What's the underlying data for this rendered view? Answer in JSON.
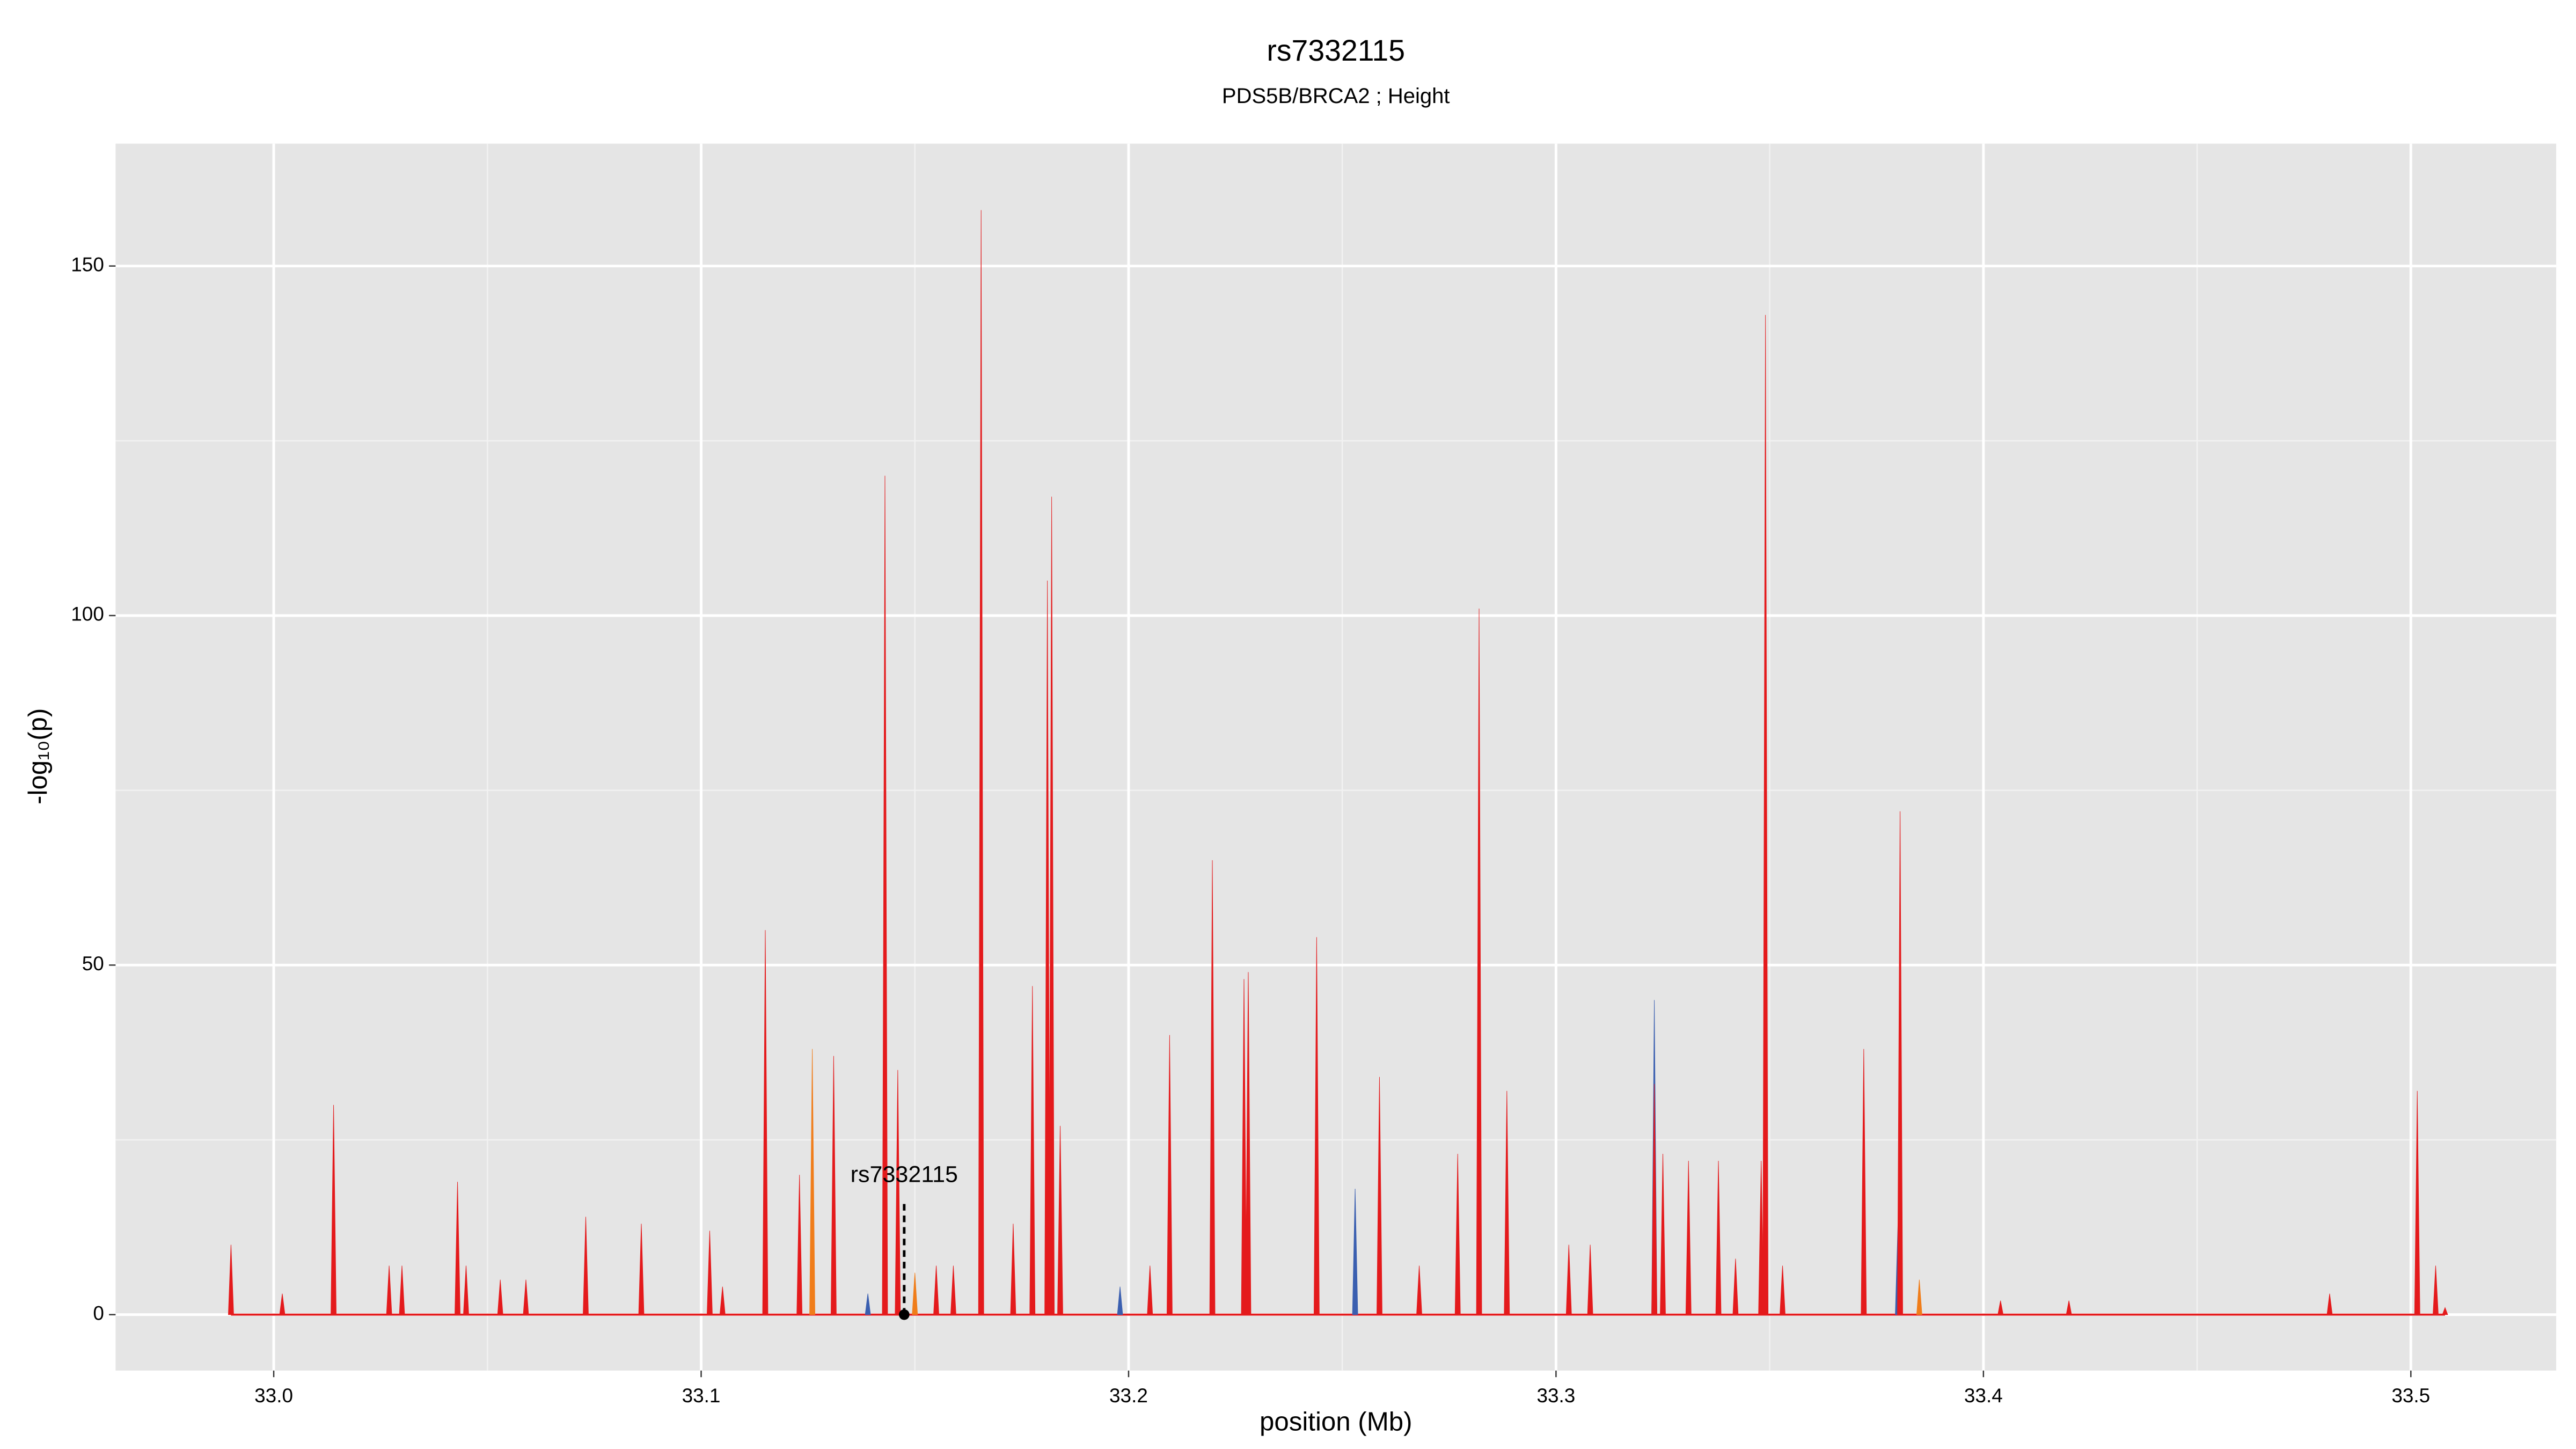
{
  "chart_data": {
    "type": "spike",
    "title": "rs7332115",
    "subtitle": "PDS5B/BRCA2 ; Height",
    "x_label": "position (Mb)",
    "y_label": "-log₁₀(p)",
    "xlim": [
      32.963,
      33.534
    ],
    "ylim": [
      -8,
      167.5
    ],
    "xticks": [
      {
        "value": 33,
        "label": "33.0"
      },
      33.1,
      33.2,
      33.3,
      33.4,
      33.5
    ],
    "minor_xticks": [
      33.05,
      33.15,
      33.25,
      33.35,
      33.45
    ],
    "yticks": [
      0,
      50,
      100,
      150
    ],
    "minor_yticks": [
      25,
      75,
      125
    ],
    "grid": true,
    "series": [
      {
        "color": "#e41a1c",
        "x": [
          32.99,
          33.002,
          33.014,
          33.027,
          33.03,
          33.043,
          33.045,
          33.053,
          33.059,
          33.073,
          33.086,
          33.102,
          33.105,
          33.115,
          33.123,
          33.131,
          33.143,
          33.146,
          33.155,
          33.159,
          33.1655,
          33.173,
          33.1775,
          33.181,
          33.182,
          33.184,
          33.205,
          33.2096,
          33.2196,
          33.227,
          33.228,
          33.244,
          33.2587,
          33.268,
          33.277,
          33.282,
          33.2885,
          33.303,
          33.308,
          33.323,
          33.325,
          33.331,
          33.338,
          33.342,
          33.348,
          33.349,
          33.353,
          33.372,
          33.3805,
          33.404,
          33.42,
          33.481,
          33.5015,
          33.5058,
          33.508
        ],
        "values": [
          10,
          3,
          30,
          7,
          7,
          19,
          7,
          5,
          5,
          14,
          13,
          12,
          4,
          55,
          20,
          37,
          120,
          35,
          7,
          7,
          158,
          13,
          47,
          105,
          117,
          27,
          7,
          40,
          65,
          48,
          49,
          54,
          34,
          7,
          23,
          101,
          32,
          10,
          10,
          33,
          23,
          22,
          22,
          8,
          22,
          143,
          7,
          38,
          72,
          2,
          2,
          3,
          32,
          7,
          1
        ]
      },
      {
        "color": "#3a5fb0",
        "x": [
          33.139,
          33.198,
          33.253,
          33.323,
          33.38,
          33.5015
        ],
        "values": [
          3,
          4,
          18,
          45,
          13,
          20
        ]
      },
      {
        "color": "#f07d1a",
        "x": [
          33.126,
          33.15,
          33.385
        ],
        "values": [
          38,
          6,
          5
        ]
      }
    ],
    "annotation": {
      "text": "rs7332115",
      "x": 33.1475,
      "y": 0
    }
  }
}
